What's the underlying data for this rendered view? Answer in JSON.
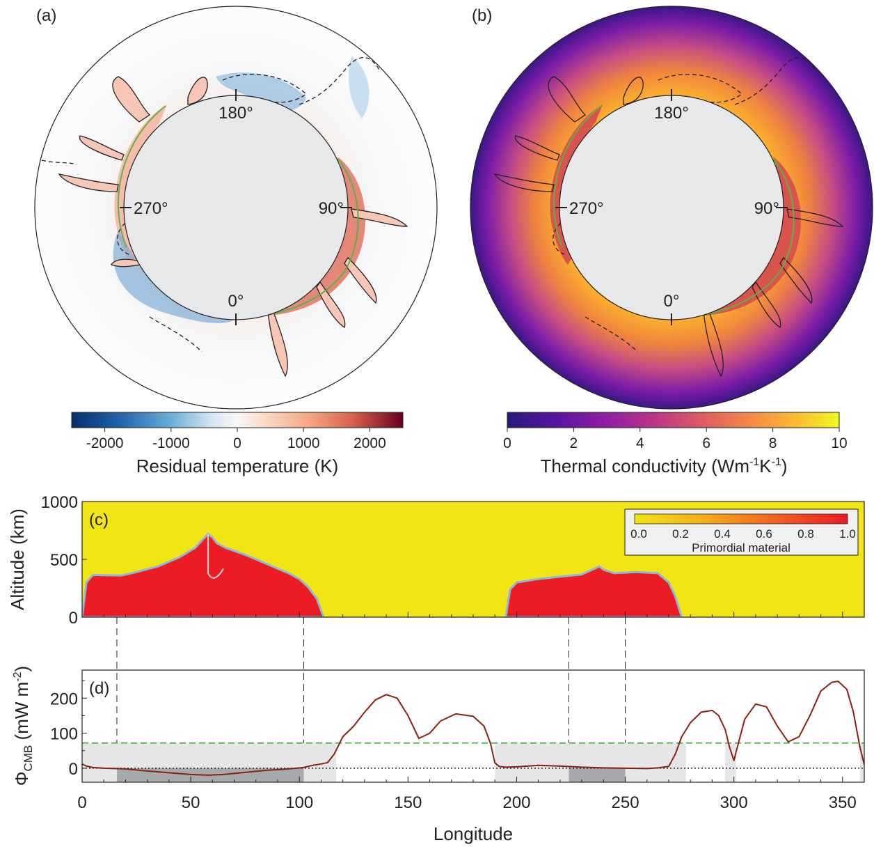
{
  "panel_labels": {
    "a": "(a)",
    "b": "(b)",
    "c": "(c)",
    "d": "(d)"
  },
  "annulus_angles": {
    "top": "180°",
    "left": "270°",
    "right": "90°",
    "bottom": "0°"
  },
  "colors": {
    "core": "#e7e8ea",
    "dense_warm": "#d8544c",
    "plume_fill_a": "#f7c6b6",
    "cold_blue": "#74a9cf",
    "primordial_red": "#ec1c24",
    "ambient_yellow": "#f2e514",
    "interface_blue": "#8db8d8",
    "flux_line": "#8c1f14",
    "threshold_green": "#3fa535",
    "shade_light": "#e6e6e6",
    "shade_dark": "#a7a9ac"
  },
  "colorbar_a": {
    "label": "Residual temperature (K)",
    "ticks": [
      "-2000",
      "-1000",
      "0",
      "1000",
      "2000"
    ],
    "range": [
      -2500,
      2500
    ],
    "colormap": "diverging blue-white-red"
  },
  "colorbar_b": {
    "label_main": "Thermal conductivity (Wm",
    "sup1": "-1",
    "mid": "K",
    "sup2": "-1",
    "close": ")",
    "ticks": [
      "0",
      "2",
      "4",
      "6",
      "8",
      "10"
    ],
    "range": [
      0,
      10
    ],
    "colormap": "plasma"
  },
  "chart_data": [
    {
      "type": "area",
      "panel": "c",
      "ylabel": "Altitude (km)",
      "ylim": [
        0,
        1000
      ],
      "xlim": [
        0,
        360
      ],
      "yticks": [
        "0",
        "500",
        "1000"
      ],
      "legend_title": "Primordial material",
      "legend_ticks": [
        "0.0",
        "0.2",
        "0.4",
        "0.6",
        "0.8",
        "1.0"
      ],
      "legend_placement": "top-right",
      "series": [
        {
          "name": "Primordial material",
          "x": [
            0,
            2,
            5,
            18,
            25,
            35,
            45,
            52,
            56,
            58,
            60,
            62,
            66,
            75,
            85,
            95,
            100,
            104,
            108,
            110,
            111
          ],
          "y": [
            0,
            300,
            365,
            360,
            390,
            440,
            520,
            600,
            680,
            720,
            690,
            640,
            600,
            540,
            460,
            380,
            330,
            260,
            160,
            60,
            0
          ]
        },
        {
          "name": "Primordial material",
          "x": [
            195,
            197,
            200,
            210,
            220,
            230,
            236,
            238,
            240,
            245,
            255,
            265,
            270,
            273,
            275,
            276
          ],
          "y": [
            0,
            240,
            300,
            330,
            350,
            370,
            420,
            440,
            410,
            380,
            390,
            380,
            300,
            180,
            60,
            0
          ]
        }
      ]
    },
    {
      "type": "line",
      "panel": "d",
      "xlabel": "Longitude",
      "ylabel_main": "Φ",
      "ylabel_sub": "CMB",
      "ylabel_unit": " (mW m",
      "ylabel_sup": "-2",
      "ylabel_close": ")",
      "xlim": [
        0,
        360
      ],
      "ylim": [
        -40,
        280
      ],
      "xticks": [
        "0",
        "50",
        "100",
        "150",
        "200",
        "250",
        "300",
        "350"
      ],
      "yticks": [
        "0",
        "100",
        "200"
      ],
      "threshold": 72,
      "zero_line": 0,
      "dashed_markers": [
        16,
        102,
        224,
        250
      ],
      "light_shade_ranges": [
        [
          0,
          117
        ],
        [
          190,
          278
        ],
        [
          296,
          301
        ],
        [
          358,
          360
        ]
      ],
      "dark_shade_ranges": [
        [
          16,
          102
        ],
        [
          224,
          250
        ]
      ],
      "series": [
        {
          "x": [
            0,
            2,
            5,
            10,
            20,
            30,
            40,
            50,
            58,
            65,
            75,
            85,
            95,
            102,
            106,
            110,
            113,
            116,
            120,
            125,
            130,
            135,
            140,
            145,
            150,
            155,
            160,
            165,
            172,
            180,
            185,
            188,
            190,
            192,
            195,
            200,
            210,
            220,
            230,
            240,
            250,
            260,
            265,
            270,
            273,
            276,
            280,
            285,
            290,
            293,
            296,
            298,
            300,
            302,
            305,
            310,
            315,
            320,
            325,
            330,
            335,
            340,
            345,
            348,
            352,
            355,
            358,
            360
          ],
          "y": [
            12,
            6,
            2,
            0,
            -2,
            -8,
            -13,
            -18,
            -20,
            -18,
            -12,
            -6,
            -2,
            2,
            8,
            12,
            16,
            40,
            90,
            120,
            160,
            195,
            210,
            200,
            150,
            85,
            100,
            135,
            155,
            148,
            120,
            70,
            15,
            5,
            3,
            4,
            8,
            6,
            3,
            1,
            0,
            -1,
            1,
            5,
            40,
            90,
            130,
            160,
            165,
            150,
            110,
            60,
            22,
            70,
            140,
            183,
            175,
            120,
            75,
            90,
            150,
            220,
            245,
            248,
            225,
            160,
            60,
            10
          ]
        }
      ]
    }
  ]
}
